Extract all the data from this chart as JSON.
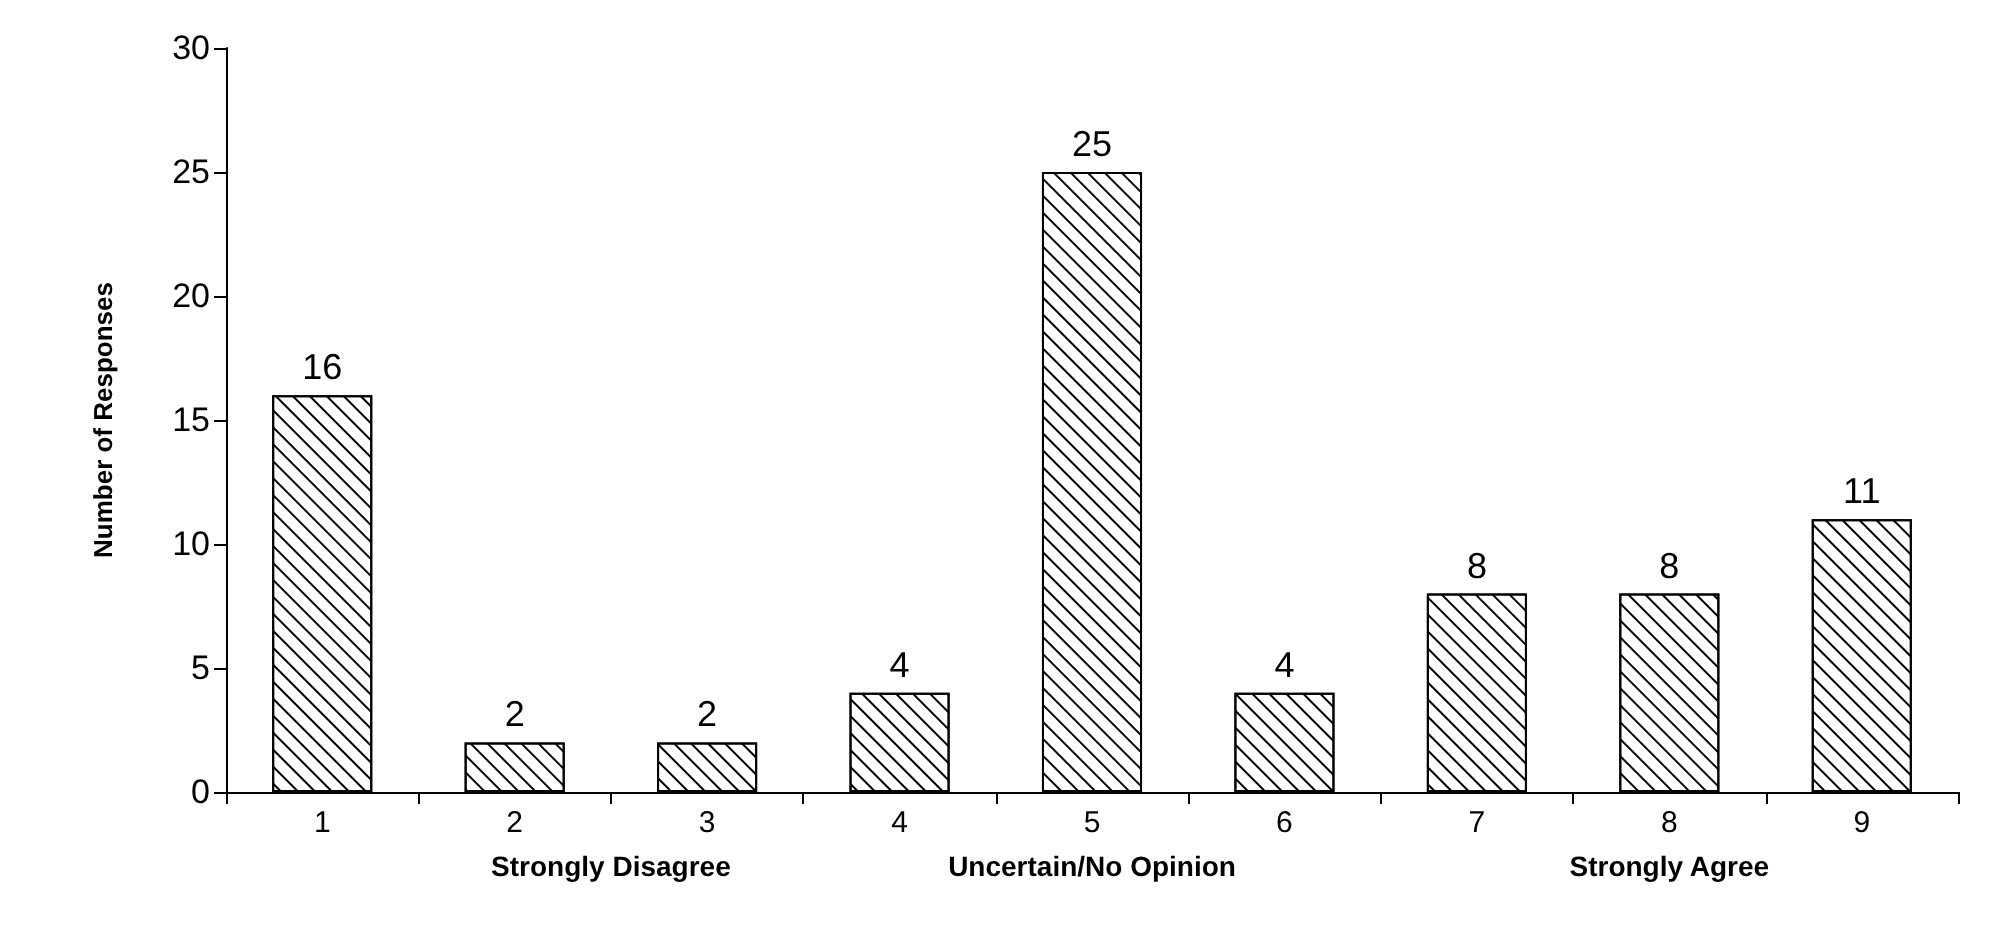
{
  "chart_data": {
    "type": "bar",
    "ylabel": "Number of Responses",
    "categories": [
      "1",
      "2",
      "3",
      "4",
      "5",
      "6",
      "7",
      "8",
      "9"
    ],
    "values": [
      16,
      2,
      2,
      4,
      25,
      4,
      8,
      8,
      11
    ],
    "color": "#ffffff",
    "ylim": [
      0,
      30
    ],
    "yticks": [
      0,
      5,
      10,
      15,
      20,
      25,
      30
    ],
    "data_labels": true,
    "grid": false,
    "annotations": [
      "Strongly Disagree",
      "Uncertain/No Opinion",
      "Strongly Agree"
    ]
  }
}
